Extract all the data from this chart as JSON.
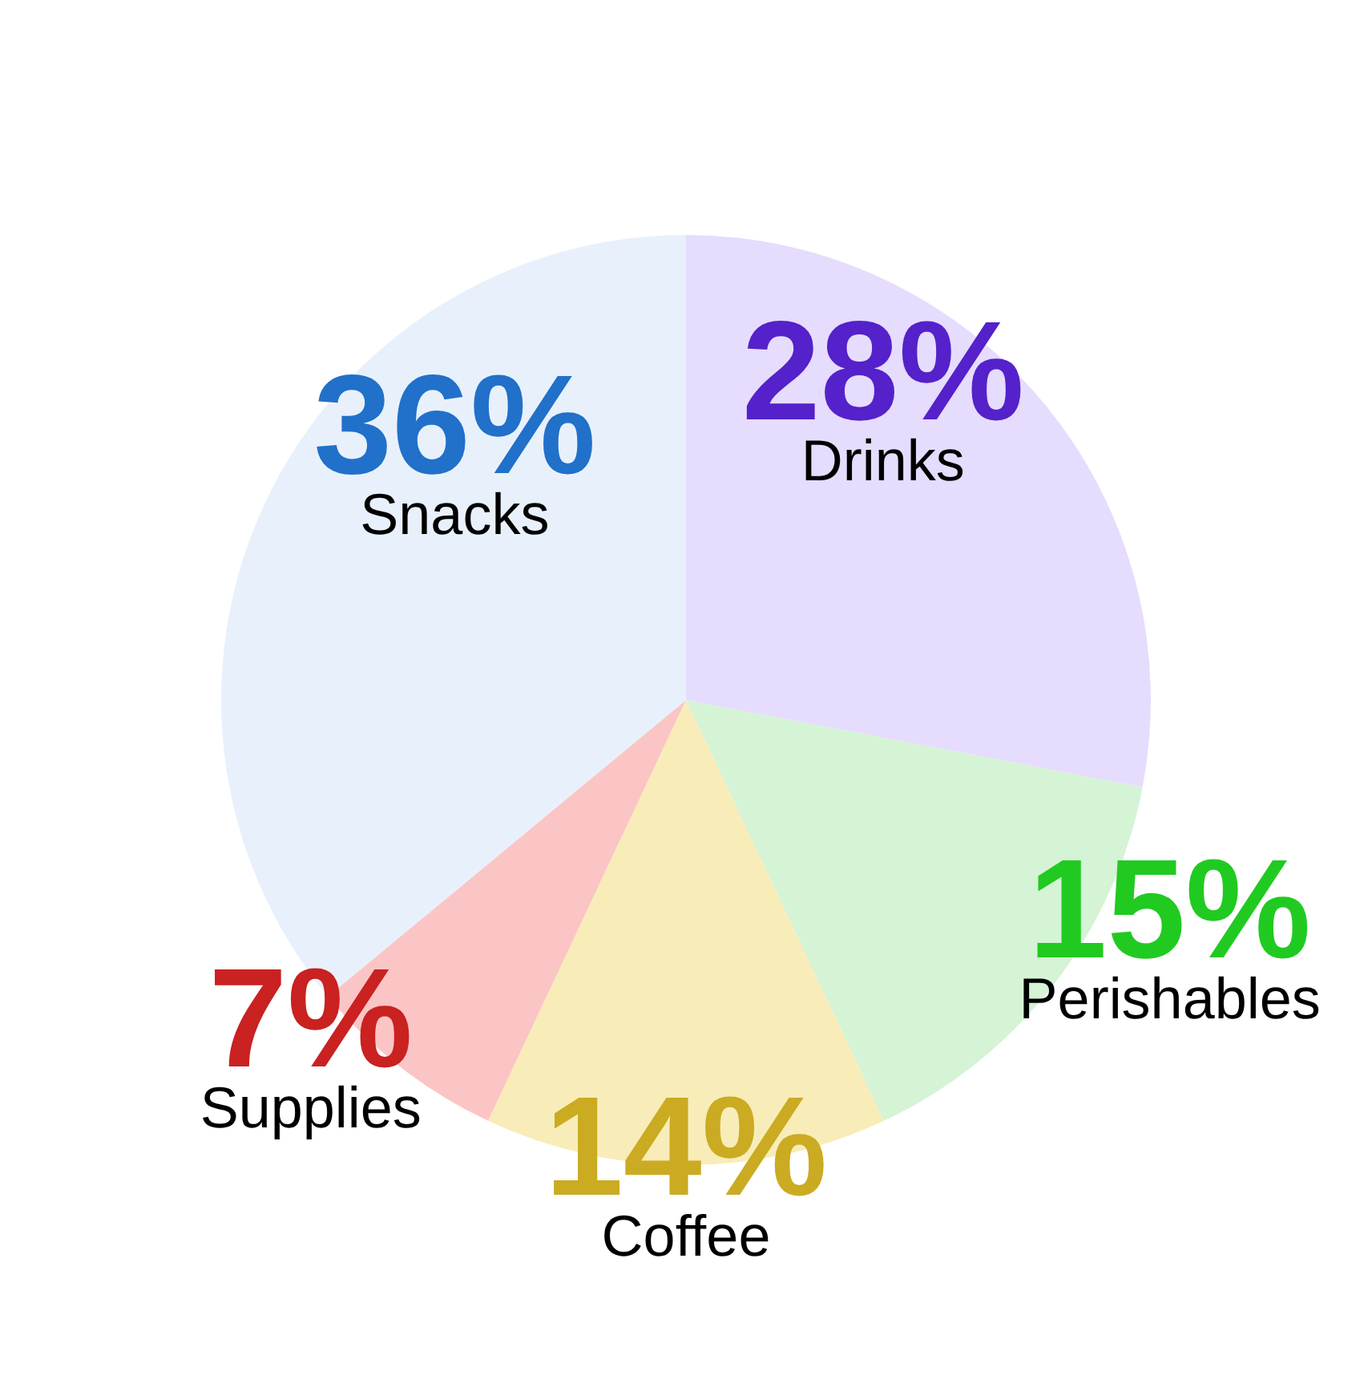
{
  "chart_data": {
    "type": "pie",
    "categories": [
      "Drinks",
      "Perishables",
      "Coffee",
      "Supplies",
      "Snacks"
    ],
    "values": [
      28,
      15,
      14,
      7,
      36
    ],
    "colors": [
      "#e6dcfd",
      "#d5f3d5",
      "#f8ecb8",
      "#fcc5c5",
      "#e8f1fb"
    ],
    "value_labels": [
      "28%",
      "15%",
      "14%",
      "7%",
      "36%"
    ]
  }
}
